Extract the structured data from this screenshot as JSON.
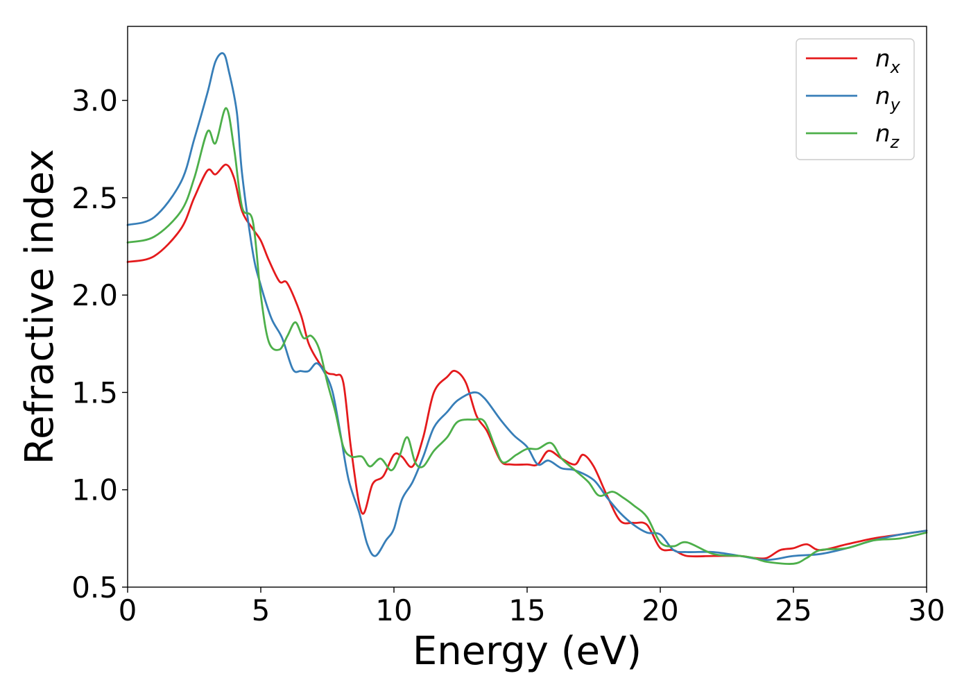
{
  "chart_data": {
    "type": "line",
    "xlabel": "Energy (eV)",
    "ylabel": "Refractive index",
    "xlim": [
      0,
      30
    ],
    "ylim": [
      0.5,
      3.38
    ],
    "xticks": [
      0,
      5,
      10,
      15,
      20,
      25,
      30
    ],
    "xtick_labels": [
      "0",
      "5",
      "10",
      "15",
      "20",
      "25",
      "30"
    ],
    "yticks": [
      0.5,
      1.0,
      1.5,
      2.0,
      2.5,
      3.0
    ],
    "ytick_labels": [
      "0.5",
      "1.0",
      "1.5",
      "2.0",
      "2.5",
      "3.0"
    ],
    "grid": false,
    "legend_position": "top-right",
    "series": [
      {
        "name": "n",
        "subscript": "x",
        "color": "#e41a1c",
        "x": [
          0,
          1,
          2,
          2.5,
          3,
          3.3,
          3.7,
          4,
          4.3,
          4.7,
          5,
          5.3,
          5.7,
          6,
          6.5,
          6.8,
          7.2,
          7.5,
          7.8,
          8.1,
          8.4,
          8.8,
          9.2,
          9.6,
          10,
          10.3,
          10.7,
          11.1,
          11.5,
          12,
          12.3,
          12.7,
          13.1,
          13.5,
          14,
          14.4,
          15,
          15.4,
          15.8,
          16.3,
          16.8,
          17.1,
          17.5,
          18,
          18.5,
          19,
          19.5,
          20,
          20.5,
          21,
          22,
          23,
          23.5,
          24,
          24.5,
          25,
          25.5,
          26,
          27,
          28,
          29,
          30
        ],
        "values": [
          2.17,
          2.2,
          2.34,
          2.5,
          2.64,
          2.62,
          2.67,
          2.6,
          2.43,
          2.34,
          2.28,
          2.18,
          2.07,
          2.06,
          1.9,
          1.75,
          1.65,
          1.6,
          1.59,
          1.55,
          1.2,
          0.88,
          1.03,
          1.07,
          1.18,
          1.17,
          1.12,
          1.27,
          1.5,
          1.58,
          1.61,
          1.55,
          1.38,
          1.3,
          1.15,
          1.13,
          1.13,
          1.13,
          1.2,
          1.16,
          1.13,
          1.18,
          1.12,
          0.97,
          0.84,
          0.83,
          0.82,
          0.7,
          0.69,
          0.66,
          0.66,
          0.66,
          0.65,
          0.65,
          0.69,
          0.7,
          0.72,
          0.69,
          0.72,
          0.75,
          0.77,
          0.79
        ]
      },
      {
        "name": "n",
        "subscript": "y",
        "color": "#377eb8",
        "x": [
          0,
          1,
          2,
          2.5,
          3,
          3.3,
          3.6,
          3.8,
          4.1,
          4.3,
          4.7,
          5,
          5.4,
          5.8,
          6.2,
          6.5,
          6.8,
          7.1,
          7.4,
          7.7,
          8,
          8.3,
          8.7,
          9,
          9.3,
          9.7,
          10,
          10.3,
          10.7,
          11.1,
          11.5,
          12,
          12.4,
          13,
          13.4,
          14,
          14.5,
          15,
          15.4,
          15.8,
          16.3,
          16.8,
          17.5,
          18,
          18.5,
          19,
          19.5,
          20,
          20.5,
          21,
          22,
          23,
          24,
          25,
          26,
          27,
          28,
          29,
          30
        ],
        "values": [
          2.36,
          2.4,
          2.58,
          2.8,
          3.04,
          3.2,
          3.24,
          3.15,
          2.94,
          2.62,
          2.22,
          2.05,
          1.88,
          1.78,
          1.62,
          1.61,
          1.61,
          1.65,
          1.6,
          1.5,
          1.28,
          1.05,
          0.88,
          0.72,
          0.66,
          0.74,
          0.8,
          0.95,
          1.04,
          1.17,
          1.32,
          1.4,
          1.46,
          1.5,
          1.47,
          1.36,
          1.28,
          1.22,
          1.13,
          1.15,
          1.11,
          1.1,
          1.05,
          0.96,
          0.88,
          0.82,
          0.78,
          0.77,
          0.69,
          0.68,
          0.68,
          0.66,
          0.64,
          0.66,
          0.67,
          0.7,
          0.74,
          0.77,
          0.79
        ]
      },
      {
        "name": "n",
        "subscript": "z",
        "color": "#4daf4a",
        "x": [
          0,
          1,
          2,
          2.5,
          3,
          3.3,
          3.7,
          4,
          4.3,
          4.7,
          5,
          5.3,
          5.7,
          6,
          6.3,
          6.6,
          6.9,
          7.2,
          7.5,
          7.8,
          8.1,
          8.4,
          8.8,
          9.1,
          9.5,
          9.9,
          10.2,
          10.5,
          10.8,
          11.1,
          11.5,
          12,
          12.4,
          13,
          13.4,
          13.8,
          14.1,
          14.6,
          15,
          15.4,
          15.9,
          16.3,
          16.8,
          17.3,
          17.7,
          18.2,
          18.6,
          19,
          19.5,
          20,
          20.5,
          21,
          22,
          23,
          23.5,
          24,
          25,
          25.5,
          26,
          27,
          28,
          29,
          30
        ],
        "values": [
          2.27,
          2.3,
          2.43,
          2.6,
          2.84,
          2.78,
          2.96,
          2.75,
          2.45,
          2.38,
          2.0,
          1.76,
          1.72,
          1.79,
          1.86,
          1.78,
          1.79,
          1.72,
          1.55,
          1.4,
          1.22,
          1.17,
          1.17,
          1.12,
          1.16,
          1.1,
          1.17,
          1.27,
          1.14,
          1.12,
          1.2,
          1.27,
          1.35,
          1.36,
          1.35,
          1.22,
          1.14,
          1.18,
          1.21,
          1.21,
          1.24,
          1.16,
          1.1,
          1.04,
          0.97,
          0.99,
          0.96,
          0.92,
          0.86,
          0.73,
          0.71,
          0.73,
          0.67,
          0.66,
          0.65,
          0.63,
          0.62,
          0.65,
          0.69,
          0.7,
          0.74,
          0.75,
          0.78
        ]
      }
    ]
  }
}
